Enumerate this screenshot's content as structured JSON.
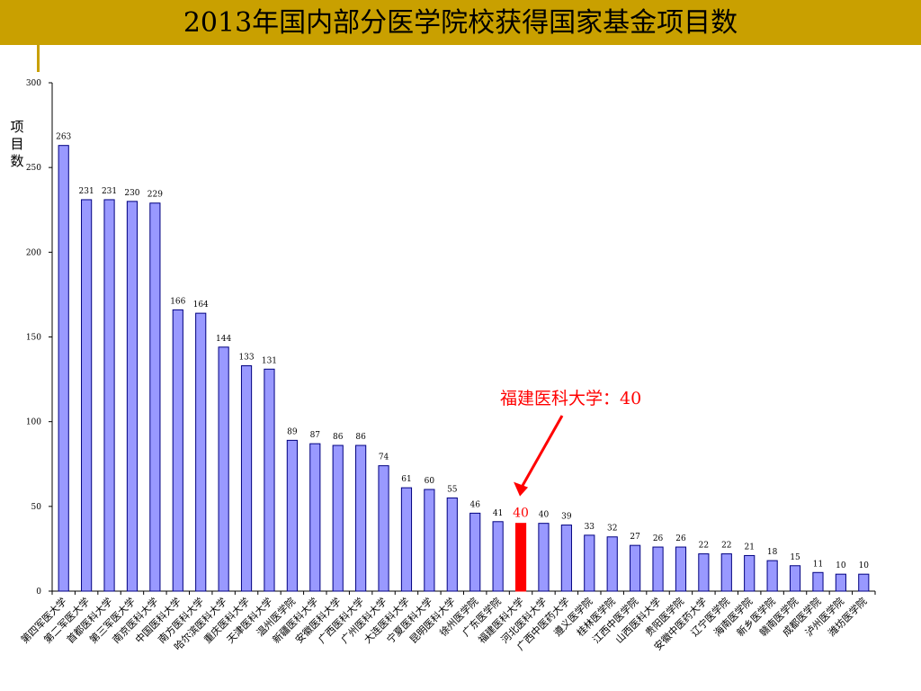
{
  "title": "2013年国内部分医学院校获得国家基金项目数",
  "colors": {
    "title_bar": "#c9a000",
    "bar": "#9999ff",
    "bar_stroke": "#000080",
    "highlight_bar": "#ff0000",
    "highlight_text": "#ff0000"
  },
  "callout": {
    "text": "福建医科大学：40",
    "category": "福建医科大学"
  },
  "chart_data": {
    "type": "bar",
    "title": "2013年国内部分医学院校获得国家基金项目数",
    "xlabel": "",
    "ylabel": "项目数",
    "ylim": [
      0,
      300
    ],
    "yticks": [
      0,
      50,
      100,
      150,
      200,
      250,
      300
    ],
    "grid": false,
    "highlight": "福建医科大学",
    "categories": [
      "第四军医大学",
      "第二军医大学",
      "首都医科大学",
      "第三军医大学",
      "南京医科大学",
      "中国医科大学",
      "南方医科大学",
      "哈尔滨医科大学",
      "重庆医科大学",
      "天津医科大学",
      "温州医学院",
      "新疆医科大学",
      "安徽医科大学",
      "广西医科大学",
      "广州医科大学",
      "大连医科大学",
      "宁夏医科大学",
      "昆明医科大学",
      "徐州医学院",
      "广东医学院",
      "福建医科大学",
      "河北医科大学",
      "广西中医药大学",
      "遵义医学院",
      "桂林医学院",
      "江西中医学院",
      "山西医科大学",
      "贵阳医学院",
      "安徽中医药大学",
      "辽宁医学院",
      "海南医学院",
      "新乡医学院",
      "赣南医学院",
      "成都医学院",
      "泸州医学院",
      "潍坊医学院"
    ],
    "values": [
      263,
      231,
      231,
      230,
      229,
      166,
      164,
      144,
      133,
      131,
      89,
      87,
      86,
      86,
      74,
      61,
      60,
      55,
      46,
      41,
      40,
      40,
      39,
      33,
      32,
      27,
      26,
      26,
      22,
      22,
      21,
      18,
      15,
      11,
      10,
      10
    ]
  }
}
